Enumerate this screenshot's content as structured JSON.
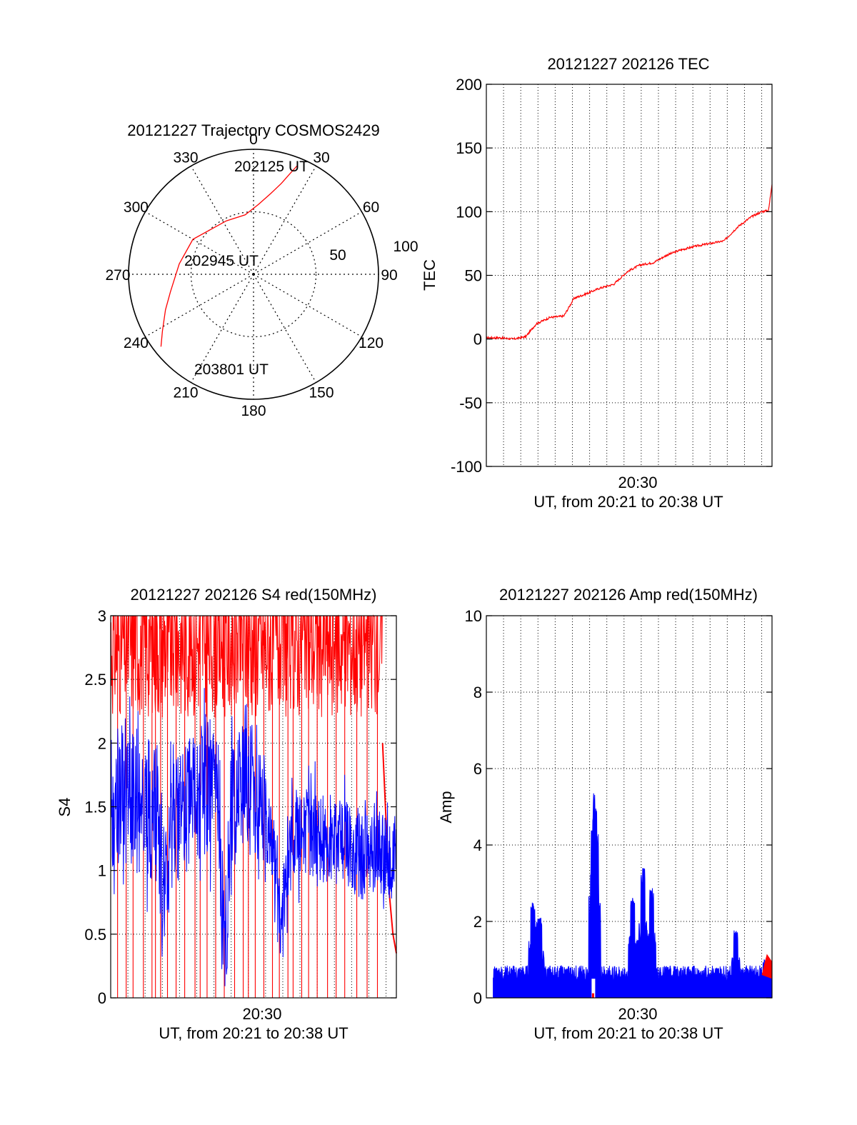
{
  "colors": {
    "red": "#ff0000",
    "blue": "#0000ff",
    "axis": "#000000",
    "grid": "#000000"
  },
  "chart_data": [
    {
      "id": "polar",
      "type": "polar-trajectory",
      "title": "20121227 Trajectory COSMOS2429",
      "azimuth_labels": [
        "0",
        "30",
        "60",
        "90",
        "120",
        "150",
        "180",
        "210",
        "240",
        "270",
        "300",
        "330"
      ],
      "radial_labels": [
        "50",
        "100"
      ],
      "radial_max": 100,
      "trajectory": [
        [
          22,
          94
        ],
        [
          20,
          86
        ],
        [
          17,
          76
        ],
        [
          12,
          66
        ],
        [
          4,
          56
        ],
        [
          352,
          48
        ],
        [
          333,
          48
        ],
        [
          300,
          56
        ],
        [
          278,
          60
        ],
        [
          258,
          68
        ],
        [
          248,
          76
        ],
        [
          238,
          86
        ],
        [
          232,
          94
        ]
      ],
      "time_labels": [
        {
          "text": "202125 UT",
          "az": 22,
          "r": 94
        },
        {
          "text": "202945 UT",
          "az": 280,
          "r": 14
        },
        {
          "text": "203801 UT",
          "az": 232,
          "r": 94
        }
      ],
      "grid": true
    },
    {
      "id": "tec",
      "type": "line",
      "title": "20121227 202126 TEC",
      "ylabel": "TEC",
      "xlabel": "UT, from 20:21 to 20:38 UT",
      "xtick_labels": [
        "20:30"
      ],
      "xlim": [
        "20:21:26",
        "20:38:01"
      ],
      "ylim": [
        -100,
        200
      ],
      "yticks": [
        -100,
        -50,
        0,
        50,
        100,
        150,
        200
      ],
      "grid": true,
      "series": [
        {
          "color": "red",
          "x_minutes": [
            0,
            0.8,
            1.6,
            2.3,
            2.9,
            3.7,
            4.5,
            5.1,
            5.7,
            6.6,
            7.4,
            8.2,
            8.9,
            9.7,
            10.5,
            11.3,
            12.2,
            13.0,
            13.8,
            14.6,
            15.4,
            16.0,
            16.4,
            16.6
          ],
          "values": [
            1,
            1,
            0,
            2,
            12,
            17,
            18,
            32,
            35,
            40,
            43,
            53,
            58,
            60,
            66,
            70,
            73,
            75,
            77,
            88,
            96,
            100,
            101,
            122
          ]
        }
      ]
    },
    {
      "id": "s4",
      "type": "line",
      "title": "20121227 202126 S4 red(150MHz)",
      "ylabel": "S4",
      "xlabel": "UT, from 20:21 to 20:38 UT",
      "xtick_labels": [
        "20:30"
      ],
      "xlim": [
        "20:21:26",
        "20:38:01"
      ],
      "ylim": [
        0,
        3
      ],
      "yticks": [
        "0",
        "0.5",
        "1",
        "1.5",
        "2",
        "2.5",
        "3"
      ],
      "grid": true,
      "series": [
        {
          "color": "blue",
          "x_minutes": [
            0,
            0.5,
            1.0,
            1.6,
            2.2,
            2.7,
            3.0,
            3.3,
            3.6,
            4.2,
            5.0,
            5.6,
            6.3,
            6.6,
            7.0,
            7.6,
            8.2,
            8.8,
            9.4,
            9.7,
            10.0,
            10.6,
            11.2,
            12.0,
            12.6,
            13.2,
            13.8,
            14.6,
            15.4,
            16.0,
            16.6
          ],
          "values": [
            1.5,
            1.6,
            1.6,
            1.5,
            1.5,
            1.4,
            0.85,
            0.75,
            1.4,
            1.5,
            1.6,
            1.7,
            1.5,
            0.35,
            1.5,
            1.7,
            1.6,
            1.4,
            1.3,
            0.7,
            0.65,
            1.3,
            1.3,
            1.3,
            1.2,
            1.25,
            1.2,
            1.1,
            1.2,
            1.1,
            1.1
          ]
        },
        {
          "color": "red",
          "spike_x_minutes": [
            0.4,
            0.9,
            1.3,
            1.9,
            2.4,
            2.6,
            2.9,
            3.3,
            3.8,
            4.3,
            4.9,
            5.2,
            5.6,
            6.1,
            6.6,
            7.2,
            7.7,
            8.0,
            8.4,
            8.9,
            9.4,
            9.8,
            10.3,
            10.6,
            11.1,
            11.5,
            12.0,
            12.6,
            13.1,
            13.6,
            14.3,
            14.9,
            15.5
          ],
          "tail_x_minutes": [
            15.8,
            16.0,
            16.2,
            16.4,
            16.6
          ],
          "tail_values": [
            2.0,
            1.4,
            0.8,
            0.5,
            0.35
          ]
        }
      ]
    },
    {
      "id": "amp",
      "type": "line",
      "title": "20121227 202126 Amp red(150MHz)",
      "ylabel": "Amp",
      "xlabel": "UT, from 20:21 to 20:38 UT",
      "xtick_labels": [
        "20:30"
      ],
      "xlim": [
        "20:21:26",
        "20:38:01"
      ],
      "ylim": [
        0,
        10
      ],
      "yticks": [
        0,
        2,
        4,
        6,
        8,
        10
      ],
      "grid": true,
      "series": [
        {
          "color": "blue",
          "baseline": 0.4,
          "peaks": [
            [
              2.7,
              2.5
            ],
            [
              2.9,
              2.0
            ],
            [
              3.1,
              2.1
            ],
            [
              6.2,
              4.5
            ],
            [
              6.3,
              5.4
            ],
            [
              6.4,
              4.3
            ],
            [
              8.5,
              2.7
            ],
            [
              8.8,
              1.6
            ],
            [
              9.1,
              3.4
            ],
            [
              9.6,
              2.9
            ],
            [
              14.5,
              1.8
            ],
            [
              16.2,
              1.0
            ]
          ]
        },
        {
          "color": "red",
          "segments": [
            [
              6.2,
              0.1
            ],
            [
              16.0,
              1.1
            ],
            [
              16.6,
              0.9
            ]
          ]
        }
      ]
    }
  ]
}
